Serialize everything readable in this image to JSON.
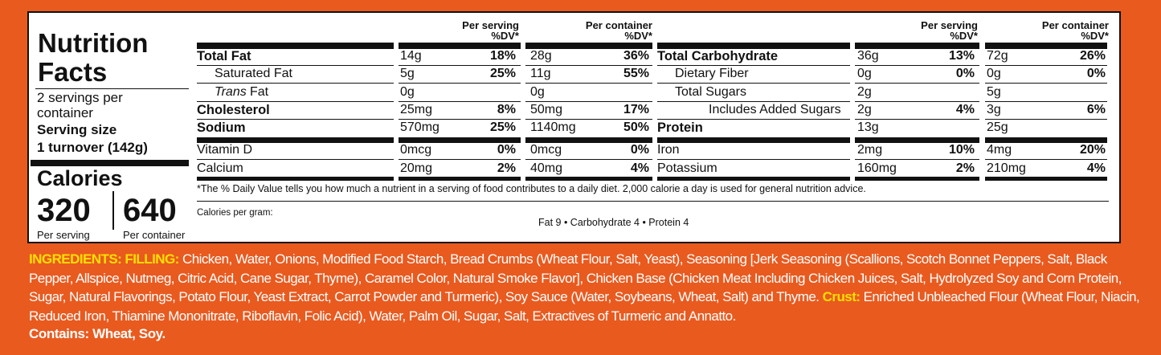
{
  "title": "Nutrition Facts",
  "servings": "2 servings per container",
  "serving_size_label": "Serving size",
  "serving_size": "1 turnover (142g)",
  "calories": {
    "label": "Calories",
    "per_serving": 320,
    "per_container": 640,
    "per_serving_label": "Per serving",
    "per_container_label": "Per container"
  },
  "columns": {
    "per_serving": "Per serving",
    "per_container": "Per container",
    "dv": "%DV*"
  },
  "tables": [
    {
      "rows": [
        {
          "name": "Total Fat",
          "bold": true,
          "serving": {
            "amount": "14g",
            "dv": "18%"
          },
          "container": {
            "amount": "28g",
            "dv": "36%"
          }
        },
        {
          "name": "Saturated Fat",
          "indent": 1,
          "serving": {
            "amount": "5g",
            "dv": "25%"
          },
          "container": {
            "amount": "11g",
            "dv": "55%"
          }
        },
        {
          "name_italic": "Trans",
          "name": "Fat",
          "indent": 1,
          "serving": {
            "amount": "0g"
          },
          "container": {
            "amount": "0g"
          }
        },
        {
          "name": "Cholesterol",
          "bold": true,
          "serving": {
            "amount": "25mg",
            "dv": "8%"
          },
          "container": {
            "amount": "50mg",
            "dv": "17%"
          }
        },
        {
          "name": "Sodium",
          "bold": true,
          "serving": {
            "amount": "570mg",
            "dv": "25%"
          },
          "container": {
            "amount": "1140mg",
            "dv": "50%"
          }
        },
        {
          "name": "Vitamin D",
          "serving": {
            "amount": "0mcg",
            "dv": "0%"
          },
          "container": {
            "amount": "0mcg",
            "dv": "0%"
          }
        },
        {
          "name": "Calcium",
          "serving": {
            "amount": "20mg",
            "dv": "2%"
          },
          "container": {
            "amount": "40mg",
            "dv": "4%"
          }
        }
      ]
    },
    {
      "rows": [
        {
          "name": "Total Carbohydrate",
          "bold": true,
          "serving": {
            "amount": "36g",
            "dv": "13%"
          },
          "container": {
            "amount": "72g",
            "dv": "26%"
          }
        },
        {
          "name": "Dietary Fiber",
          "indent": 1,
          "serving": {
            "amount": "0g",
            "dv": "0%"
          },
          "container": {
            "amount": "0g",
            "dv": "0%"
          }
        },
        {
          "name": "Total Sugars",
          "indent": 1,
          "serving": {
            "amount": "2g"
          },
          "container": {
            "amount": "5g"
          }
        },
        {
          "name": "Includes Added Sugars",
          "indent": 2,
          "serving": {
            "amount": "2g",
            "dv": "4%"
          },
          "container": {
            "amount": "3g",
            "dv": "6%"
          }
        },
        {
          "name": "Protein",
          "bold": true,
          "serving": {
            "amount": "13g"
          },
          "container": {
            "amount": "25g"
          }
        },
        {
          "name": "Iron",
          "serving": {
            "amount": "2mg",
            "dv": "10%"
          },
          "container": {
            "amount": "4mg",
            "dv": "20%"
          }
        },
        {
          "name": "Potassium",
          "serving": {
            "amount": "160mg",
            "dv": "2%"
          },
          "container": {
            "amount": "210mg",
            "dv": "4%"
          }
        }
      ]
    }
  ],
  "footnote": "*The % Daily Value tells you how much a nutrient in a serving of food contributes to a daily diet. 2,000 calorie a day is used for general nutrition advice.",
  "calories_per_gram": {
    "label": "Calories per gram:",
    "values": "Fat 9 • Carbohydrate 4 • Protein 4"
  },
  "ingredients": [
    {
      "text": "INGREDIENTS: FILLING:",
      "highlight": true
    },
    {
      "text": "Chicken, Water, Onions, Modified Food Starch, Bread Crumbs (Wheat Flour, Salt, Yeast), Seasoning [Jerk Seasoning (Scallions, Scotch Bonnet Peppers, Salt, Black Pepper, Allspice, Nutmeg, Citric Acid, Cane Sugar, Thyme), Caramel Color, Natural Smoke Flavor], Chicken Base (Chicken Meat Including Chicken Juices, Salt, Hydrolyzed Soy and Corn Protein, Sugar, Natural Flavorings, Potato Flour, Yeast Extract, Carrot Powder and Turmeric), Soy Sauce (Water, Soybeans, Wheat, Salt) and Thyme."
    },
    {
      "text": "Crust:",
      "highlight": true
    },
    {
      "text": "Enriched Unbleached Flour (Wheat Flour, Niacin, Reduced Iron, Thiamine Mononitrate, Riboflavin, Folic Acid), Water, Palm Oil, Sugar, Salt, Extractives of Turmeric and Annatto."
    }
  ],
  "contains": "Contains: Wheat, Soy."
}
